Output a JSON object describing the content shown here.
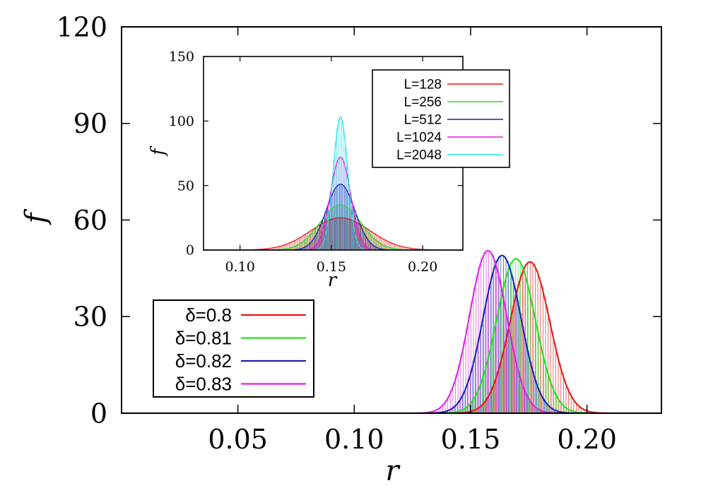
{
  "chart_data": [
    {
      "id": "main",
      "type": "histogram-with-fits",
      "xlabel": "r",
      "ylabel": "f",
      "xlim": [
        0.0,
        0.232
      ],
      "ylim": [
        0,
        120
      ],
      "xticks": [
        "0.05",
        "0.10",
        "0.15",
        "0.20"
      ],
      "xtick_values": [
        0.05,
        0.1,
        0.15,
        0.2
      ],
      "yticks": [
        "0",
        "30",
        "60",
        "90",
        "120"
      ],
      "ytick_values": [
        0,
        30,
        60,
        90,
        120
      ],
      "legend_position": "bottom-left",
      "series": [
        {
          "name": "δ=0.8",
          "color": "#e8150f",
          "mean": 0.1755,
          "sigma": 0.0085,
          "peak": 47
        },
        {
          "name": "δ=0.81",
          "color": "#22e022",
          "mean": 0.1695,
          "sigma": 0.0083,
          "peak": 48
        },
        {
          "name": "δ=0.82",
          "color": "#1520b8",
          "mean": 0.1635,
          "sigma": 0.0081,
          "peak": 49
        },
        {
          "name": "δ=0.83",
          "color": "#e020e0",
          "mean": 0.1575,
          "sigma": 0.0079,
          "peak": 50.5
        }
      ]
    },
    {
      "id": "inset",
      "type": "histogram-with-fits",
      "xlabel": "r",
      "ylabel": "f",
      "xlim": [
        0.08,
        0.222
      ],
      "ylim": [
        0,
        150
      ],
      "xticks": [
        "0.10",
        "0.15",
        "0.20"
      ],
      "xtick_values": [
        0.1,
        0.15,
        0.2
      ],
      "yticks": [
        "0",
        "50",
        "100",
        "150"
      ],
      "ytick_values": [
        0,
        50,
        100,
        150
      ],
      "legend_position": "top-right",
      "series": [
        {
          "name": "L=128",
          "color": "#e8150f",
          "mean": 0.155,
          "sigma": 0.016,
          "peak": 25
        },
        {
          "name": "L=256",
          "color": "#22e022",
          "mean": 0.155,
          "sigma": 0.0112,
          "peak": 35
        },
        {
          "name": "L=512",
          "color": "#1520b8",
          "mean": 0.155,
          "sigma": 0.0078,
          "peak": 51
        },
        {
          "name": "L=1024",
          "color": "#e020e0",
          "mean": 0.155,
          "sigma": 0.0055,
          "peak": 72
        },
        {
          "name": "L=2048",
          "color": "#20e0e8",
          "mean": 0.155,
          "sigma": 0.0039,
          "peak": 103
        }
      ]
    }
  ]
}
